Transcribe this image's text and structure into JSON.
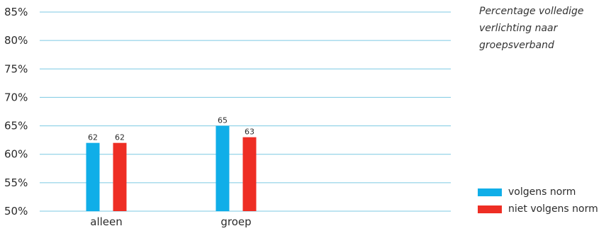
{
  "chart_data": {
    "type": "bar",
    "title_lines": [
      "Percentage volledige",
      "verlichting naar",
      "groepsverband"
    ],
    "categories": [
      "alleen",
      "groep"
    ],
    "series": [
      {
        "name": "volgens norm",
        "color": "#10aee8",
        "values": [
          62,
          65
        ]
      },
      {
        "name": "niet volgens norm",
        "color": "#ee2e24",
        "values": [
          62,
          63
        ]
      }
    ],
    "data_labels": [
      [
        "62",
        "65"
      ],
      [
        "62",
        "63"
      ]
    ],
    "ylim": [
      50,
      85
    ],
    "y_ticks": [
      85,
      80,
      75,
      70,
      65,
      60,
      55,
      50
    ],
    "y_tick_labels": [
      "85%",
      "80%",
      "75%",
      "70%",
      "65%",
      "60%",
      "55%",
      "50%"
    ],
    "grid": true,
    "grid_color": "#7cc9e3",
    "legend_position": "bottom-right"
  }
}
